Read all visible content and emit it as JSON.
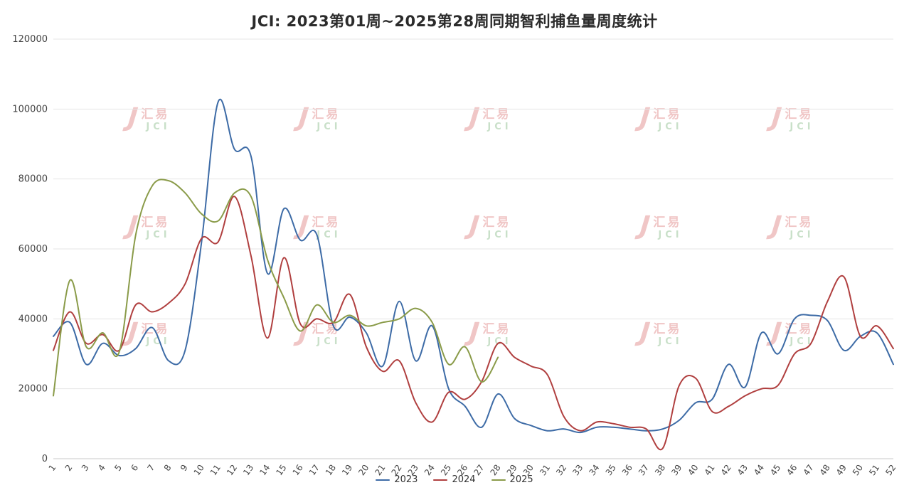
{
  "title": "JCI: 2023第01周~2025第28周同期智利捕鱼量周度统计",
  "watermark": {
    "logo_letter": "J",
    "line1": "汇易",
    "line2": "JCI",
    "red": "#d04545",
    "green": "#4e9a4e"
  },
  "chart_data": {
    "type": "line",
    "title": "JCI: 2023第01周~2025第28周同期智利捕鱼量周度统计",
    "xlabel": "",
    "ylabel": "",
    "grid": true,
    "legend_position": "bottom",
    "ylim": [
      0,
      120000
    ],
    "yticks": [
      0,
      20000,
      40000,
      60000,
      80000,
      100000,
      120000
    ],
    "x": [
      1,
      2,
      3,
      4,
      5,
      6,
      7,
      8,
      9,
      10,
      11,
      12,
      13,
      14,
      15,
      16,
      17,
      18,
      19,
      20,
      21,
      22,
      23,
      24,
      25,
      26,
      27,
      28,
      29,
      30,
      31,
      32,
      33,
      34,
      35,
      36,
      37,
      38,
      39,
      40,
      41,
      42,
      43,
      44,
      45,
      46,
      47,
      48,
      49,
      50,
      51,
      52
    ],
    "series": [
      {
        "name": "2023",
        "color": "#3d6ba6",
        "values": [
          35000,
          39000,
          27000,
          33000,
          29500,
          31500,
          37500,
          28000,
          31000,
          62000,
          102000,
          88500,
          86500,
          53000,
          71500,
          62500,
          64000,
          38000,
          40500,
          36000,
          26500,
          45000,
          28000,
          38000,
          20000,
          15000,
          9000,
          18500,
          11500,
          9500,
          8000,
          8500,
          7500,
          9000,
          9000,
          8500,
          8000,
          8500,
          11000,
          16000,
          17000,
          27000,
          20500,
          36000,
          30000,
          40000,
          41000,
          39500,
          31000,
          35000,
          36000,
          27000
        ]
      },
      {
        "name": "2024",
        "color": "#b03f3f",
        "values": [
          31000,
          42000,
          33000,
          35500,
          31000,
          44000,
          42000,
          44500,
          50000,
          63000,
          62000,
          75000,
          58000,
          34500,
          57500,
          38500,
          40000,
          39000,
          47000,
          32000,
          25000,
          28000,
          16000,
          10500,
          19000,
          17000,
          22000,
          33000,
          29000,
          26500,
          24000,
          12000,
          8000,
          10500,
          10000,
          9000,
          8500,
          3000,
          21000,
          23000,
          13500,
          15000,
          18000,
          20000,
          21000,
          30000,
          33000,
          45000,
          52000,
          35000,
          38000,
          31500
        ]
      },
      {
        "name": "2025",
        "color": "#8a9b49",
        "values": [
          18000,
          51000,
          32000,
          36000,
          30500,
          64000,
          78000,
          79500,
          76000,
          70000,
          68000,
          76000,
          75000,
          57000,
          46000,
          36500,
          44000,
          39000,
          41000,
          38000,
          39000,
          40000,
          43000,
          39000,
          27000,
          32000,
          22000,
          29000
        ]
      }
    ]
  }
}
